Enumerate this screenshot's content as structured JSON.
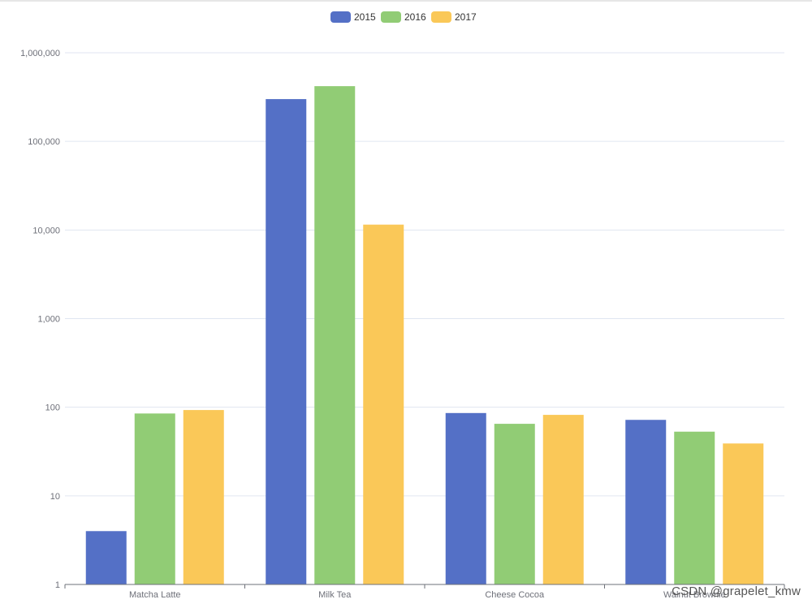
{
  "chart_data": {
    "type": "bar",
    "title": "",
    "xlabel": "",
    "ylabel": "",
    "yscale": "log",
    "ylim": [
      1,
      1000000
    ],
    "y_ticks": [
      1,
      10,
      100,
      1000,
      10000,
      100000,
      1000000
    ],
    "y_tick_labels": [
      "1",
      "10",
      "100",
      "1,000",
      "10,000",
      "100,000",
      "1,000,000"
    ],
    "grid": true,
    "legend_position": "top-center",
    "categories": [
      "Matcha Latte",
      "Milk Tea",
      "Cheese Cocoa",
      "Walnut Brownie"
    ],
    "series": [
      {
        "name": "2015",
        "color": "#5470c6",
        "values": [
          4,
          300000,
          86,
          72
        ]
      },
      {
        "name": "2016",
        "color": "#91cc75",
        "values": [
          85,
          420000,
          65,
          53
        ]
      },
      {
        "name": "2017",
        "color": "#fac858",
        "values": [
          93,
          11500,
          82,
          39
        ]
      }
    ]
  },
  "watermark": "CSDN @grapelet_kmw"
}
